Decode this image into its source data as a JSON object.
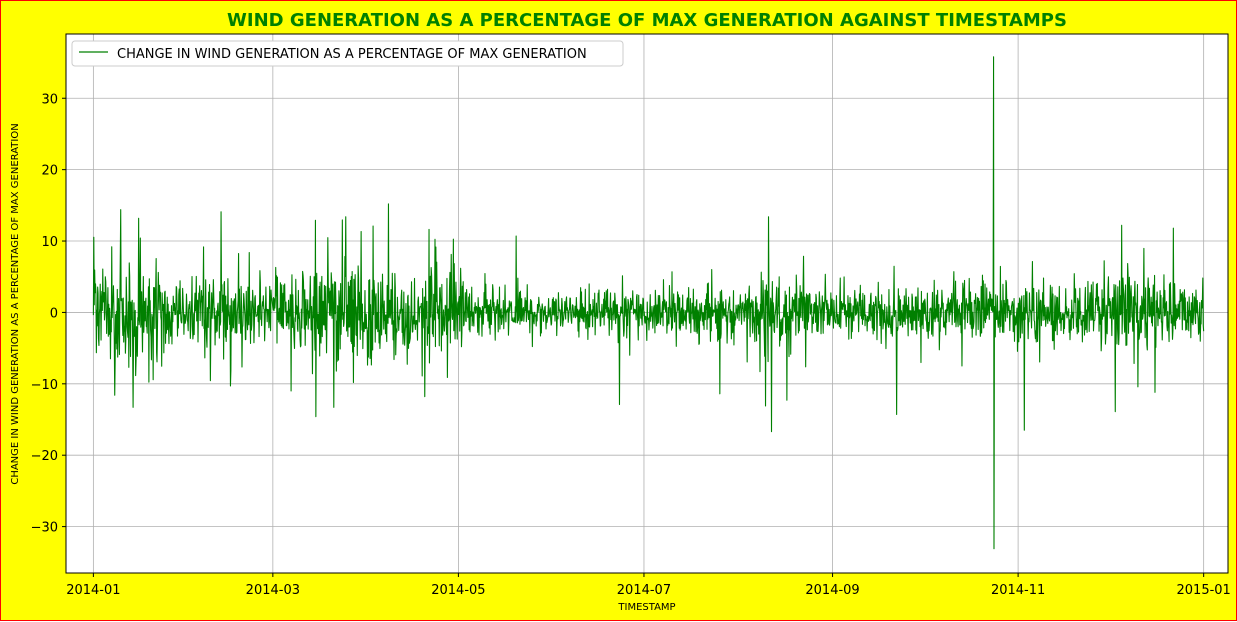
{
  "colors": {
    "figure_background": "#ffff00",
    "figure_border": "#ff0000",
    "title": "#008000",
    "series": "#008000",
    "grid": "#b0b0b0"
  },
  "chart_data": {
    "type": "line",
    "title": "WIND GENERATION AS A PERCENTAGE OF MAX GENERATION AGAINST TIMESTAMPS",
    "xlabel": "TIMESTAMP",
    "ylabel": "CHANGE IN WIND GENERATION AS A PERCENTAGE OF MAX GENERATION",
    "xlim": [
      "2013-12-23",
      "2015-01-09"
    ],
    "ylim": [
      -36.5,
      39.0
    ],
    "grid": true,
    "legend_position": "top-left",
    "x_ticks": [
      "2014-01",
      "2014-03",
      "2014-05",
      "2014-07",
      "2014-09",
      "2014-11",
      "2015-01"
    ],
    "x_tick_dates": [
      "2014-01-01",
      "2014-03-01",
      "2014-05-01",
      "2014-07-01",
      "2014-09-01",
      "2014-11-01",
      "2015-01-01"
    ],
    "y_ticks": [
      30,
      20,
      10,
      0,
      -10,
      -20,
      -30
    ],
    "y_tick_labels": [
      "30",
      "20",
      "10",
      "0",
      "−10",
      "−20",
      "−30"
    ],
    "series": [
      {
        "name": "CHANGE IN WIND GENERATION AS A PERCENTAGE OF MAX GENERATION",
        "x_range": [
          "2014-01-01",
          "2015-01-01"
        ],
        "amplitude_envelope": [
          {
            "date": "2014-01-01",
            "amp": 7
          },
          {
            "date": "2014-01-15",
            "amp": 9
          },
          {
            "date": "2014-02-01",
            "amp": 5
          },
          {
            "date": "2014-02-15",
            "amp": 8
          },
          {
            "date": "2014-03-01",
            "amp": 4
          },
          {
            "date": "2014-03-20",
            "amp": 9
          },
          {
            "date": "2014-04-10",
            "amp": 7
          },
          {
            "date": "2014-04-25",
            "amp": 8
          },
          {
            "date": "2014-05-10",
            "amp": 4
          },
          {
            "date": "2014-06-01",
            "amp": 3
          },
          {
            "date": "2014-06-20",
            "amp": 4
          },
          {
            "date": "2014-07-15",
            "amp": 4
          },
          {
            "date": "2014-08-01",
            "amp": 4
          },
          {
            "date": "2014-08-15",
            "amp": 7
          },
          {
            "date": "2014-09-01",
            "amp": 3
          },
          {
            "date": "2014-09-25",
            "amp": 5
          },
          {
            "date": "2014-10-15",
            "amp": 5
          },
          {
            "date": "2014-11-01",
            "amp": 5
          },
          {
            "date": "2014-11-20",
            "amp": 4
          },
          {
            "date": "2014-12-10",
            "amp": 7
          },
          {
            "date": "2015-01-01",
            "amp": 4
          }
        ],
        "spikes": [
          {
            "date": "2014-01-07",
            "value": 9.2
          },
          {
            "date": "2014-01-08",
            "value": -11.6
          },
          {
            "date": "2014-01-10",
            "value": 14.4
          },
          {
            "date": "2014-01-14",
            "value": -13.3
          },
          {
            "date": "2014-02-12",
            "value": 14.1
          },
          {
            "date": "2014-02-15",
            "value": -10.3
          },
          {
            "date": "2014-03-07",
            "value": -11.0
          },
          {
            "date": "2014-03-15",
            "value": 12.9
          },
          {
            "date": "2014-03-15",
            "value": -14.6
          },
          {
            "date": "2014-03-21",
            "value": -13.3
          },
          {
            "date": "2014-03-25",
            "value": 13.4
          },
          {
            "date": "2014-04-03",
            "value": 12.1
          },
          {
            "date": "2014-04-08",
            "value": 15.2
          },
          {
            "date": "2014-04-20",
            "value": -11.8
          },
          {
            "date": "2014-05-20",
            "value": 10.7
          },
          {
            "date": "2014-06-23",
            "value": -12.9
          },
          {
            "date": "2014-07-26",
            "value": -11.4
          },
          {
            "date": "2014-08-10",
            "value": -13.1
          },
          {
            "date": "2014-08-11",
            "value": 13.4
          },
          {
            "date": "2014-08-12",
            "value": -16.7
          },
          {
            "date": "2014-08-17",
            "value": -12.3
          },
          {
            "date": "2014-09-22",
            "value": -14.3
          },
          {
            "date": "2014-10-24",
            "value": 35.8
          },
          {
            "date": "2014-10-24",
            "value": -33.1
          },
          {
            "date": "2014-11-03",
            "value": -16.5
          },
          {
            "date": "2014-12-03",
            "value": -13.9
          },
          {
            "date": "2014-12-05",
            "value": 12.2
          },
          {
            "date": "2014-12-16",
            "value": -11.2
          },
          {
            "date": "2014-12-22",
            "value": 11.8
          }
        ]
      }
    ]
  }
}
